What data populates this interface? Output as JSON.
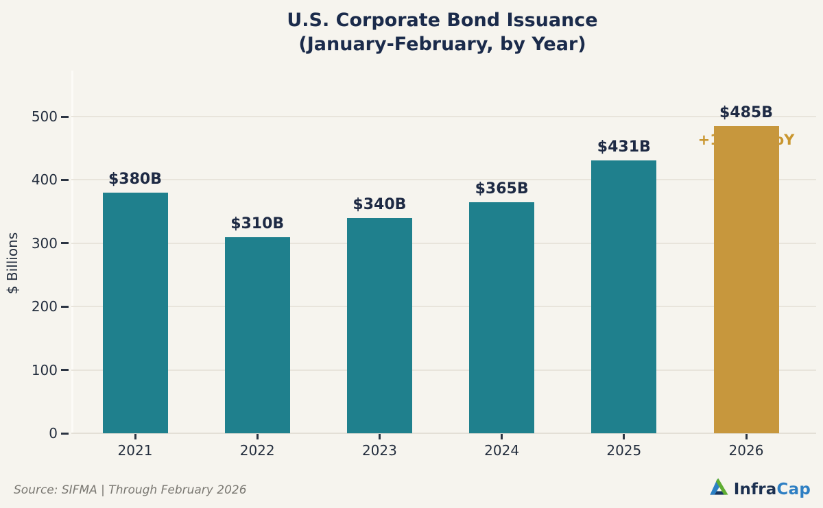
{
  "title": {
    "line1": "U.S. Corporate Bond Issuance",
    "line2": "(January-February, by Year)"
  },
  "chart_data": {
    "type": "bar",
    "categories": [
      "2021",
      "2022",
      "2023",
      "2024",
      "2025",
      "2026"
    ],
    "values": [
      380,
      310,
      340,
      365,
      431,
      485
    ],
    "bar_labels": [
      "$380B",
      "$310B",
      "$340B",
      "$365B",
      "$431B",
      "$485B"
    ],
    "highlight_index": 5,
    "annotation": {
      "text": "+12.5% YoY"
    },
    "ylabel": "$ Billions",
    "yticks": [
      0,
      100,
      200,
      300,
      400,
      500
    ],
    "ylim": [
      0,
      573
    ],
    "grid": "horizontal",
    "legend": "none",
    "colors": {
      "bar": "#1F808D",
      "highlight_bar": "#C7973D",
      "annotation_text": "#C9962F",
      "label_text": "#1E2A44"
    }
  },
  "footer": {
    "source": "Source: SIFMA  |  Through February 2026",
    "logo": {
      "text_primary": "Infra",
      "text_secondary": "Cap"
    }
  }
}
